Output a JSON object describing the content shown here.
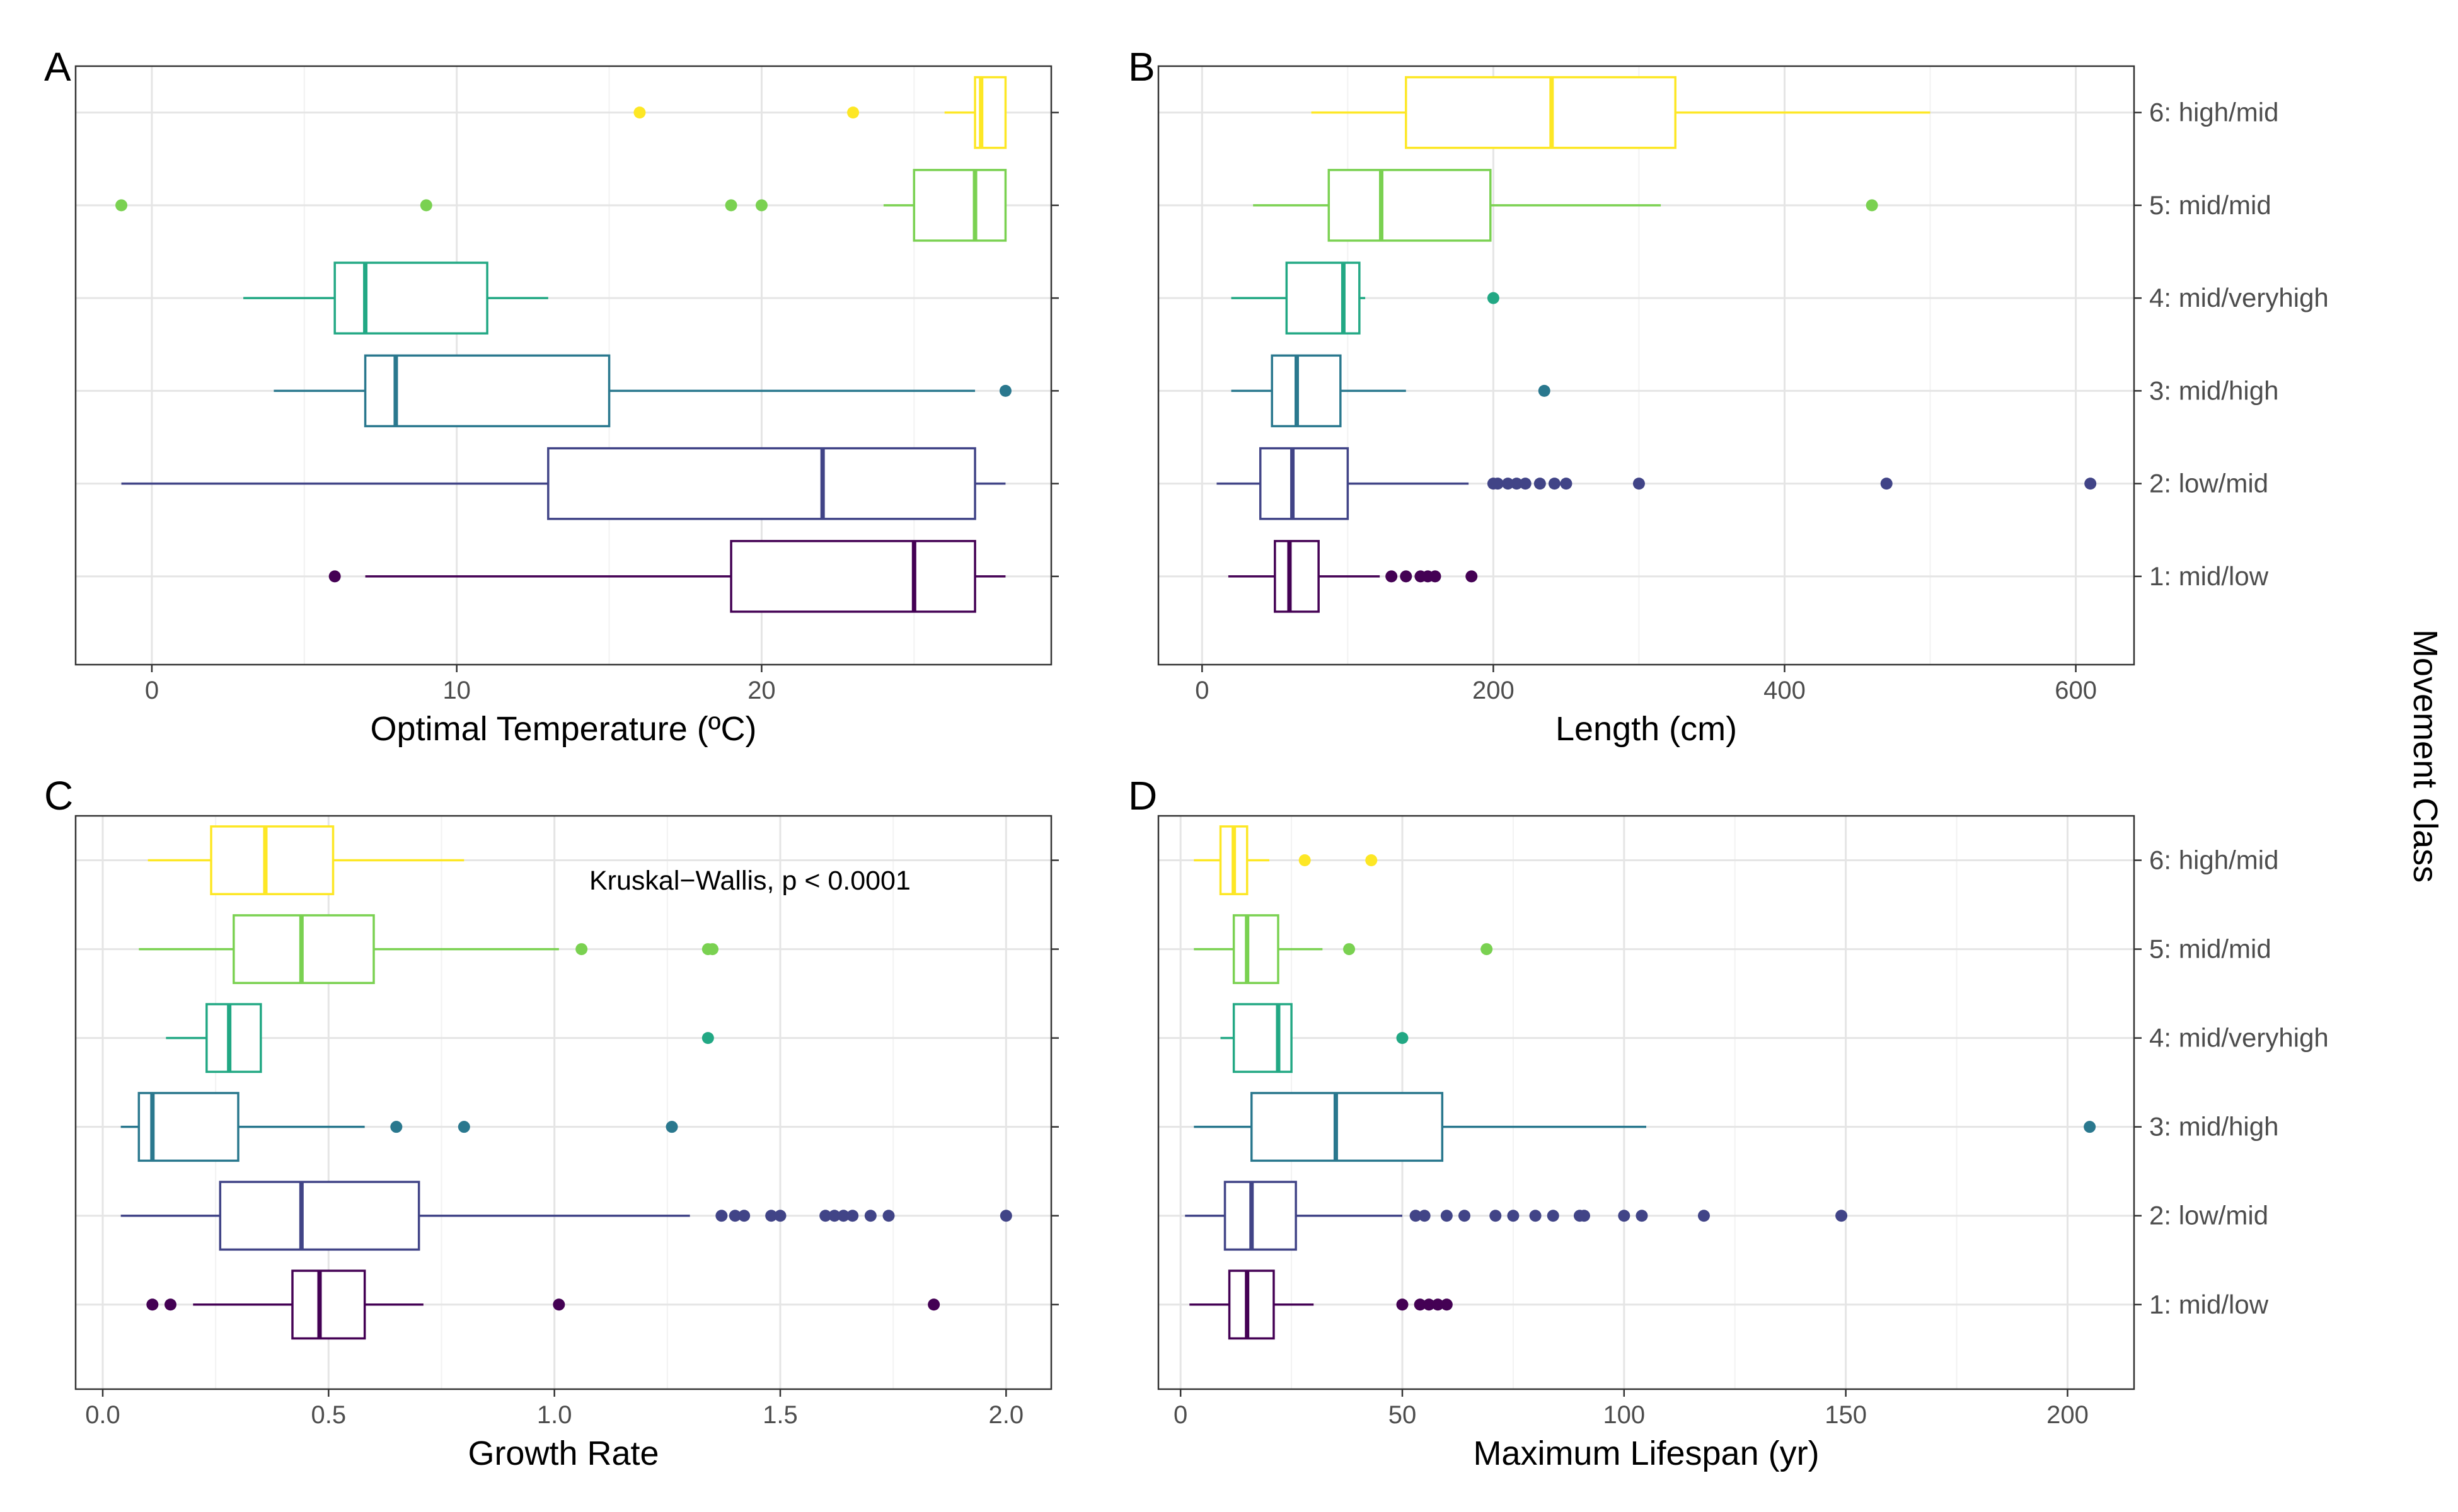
{
  "figure": {
    "y_title": "Movement Class",
    "categories": [
      "1: mid/low",
      "2: low/mid",
      "3: mid/high",
      "4: mid/veryhigh",
      "5: mid/mid",
      "6: high/mid"
    ],
    "colors": [
      "#440154",
      "#414487",
      "#2a788e",
      "#22a884",
      "#7ad151",
      "#fde725"
    ]
  },
  "chart_data": [
    {
      "panel": "A",
      "type": "box",
      "xlabel": "Optimal Temperature (ºC)",
      "xlim": [
        -2.5,
        29.5
      ],
      "xticks": [
        0,
        10,
        20
      ],
      "boxes": [
        {
          "category": "1: mid/low",
          "whisker_low": 7,
          "q1": 19,
          "median": 25,
          "q3": 27,
          "whisker_high": 28,
          "outliers": [
            6
          ]
        },
        {
          "category": "2: low/mid",
          "whisker_low": -1,
          "q1": 13,
          "median": 22,
          "q3": 27,
          "whisker_high": 28,
          "outliers": []
        },
        {
          "category": "3: mid/high",
          "whisker_low": 4,
          "q1": 7,
          "median": 8,
          "q3": 15,
          "whisker_high": 27,
          "outliers": [
            28
          ]
        },
        {
          "category": "4: mid/veryhigh",
          "whisker_low": 3,
          "q1": 6,
          "median": 7,
          "q3": 11,
          "whisker_high": 13,
          "outliers": []
        },
        {
          "category": "5: mid/mid",
          "whisker_low": 24,
          "q1": 25,
          "median": 27,
          "q3": 28,
          "whisker_high": 28,
          "outliers": [
            -1,
            9,
            19,
            20
          ]
        },
        {
          "category": "6: high/mid",
          "whisker_low": 26,
          "q1": 27,
          "median": 27.2,
          "q3": 28,
          "whisker_high": 28,
          "outliers": [
            16,
            23
          ]
        }
      ]
    },
    {
      "panel": "B",
      "type": "box",
      "xlabel": "Length (cm)",
      "xlim": [
        -30,
        640
      ],
      "xticks": [
        0,
        200,
        400,
        600
      ],
      "boxes": [
        {
          "category": "1: mid/low",
          "whisker_low": 18,
          "q1": 50,
          "median": 60,
          "q3": 80,
          "whisker_high": 122,
          "outliers": [
            130,
            140,
            150,
            155,
            160,
            185
          ]
        },
        {
          "category": "2: low/mid",
          "whisker_low": 10,
          "q1": 40,
          "median": 62,
          "q3": 100,
          "whisker_high": 183,
          "outliers": [
            200,
            203,
            210,
            216,
            222,
            232,
            242,
            250,
            300,
            470,
            610
          ]
        },
        {
          "category": "3: mid/high",
          "whisker_low": 20,
          "q1": 48,
          "median": 65,
          "q3": 95,
          "whisker_high": 140,
          "outliers": [
            235
          ]
        },
        {
          "category": "4: mid/veryhigh",
          "whisker_low": 20,
          "q1": 58,
          "median": 97,
          "q3": 108,
          "whisker_high": 112,
          "outliers": [
            200
          ]
        },
        {
          "category": "5: mid/mid",
          "whisker_low": 35,
          "q1": 87,
          "median": 123,
          "q3": 198,
          "whisker_high": 315,
          "outliers": [
            460
          ]
        },
        {
          "category": "6: high/mid",
          "whisker_low": 75,
          "q1": 140,
          "median": 240,
          "q3": 325,
          "whisker_high": 500,
          "outliers": []
        }
      ]
    },
    {
      "panel": "C",
      "type": "box",
      "xlabel": "Growth Rate",
      "xlim": [
        -0.06,
        2.1
      ],
      "xticks": [
        0.0,
        0.5,
        1.0,
        1.5,
        2.0
      ],
      "tick_labels": [
        "0.0",
        "0.5",
        "1.0",
        "1.5",
        "2.0"
      ],
      "annotation": "Kruskal−Wallis, p < 0.0001",
      "boxes": [
        {
          "category": "1: mid/low",
          "whisker_low": 0.2,
          "q1": 0.42,
          "median": 0.48,
          "q3": 0.58,
          "whisker_high": 0.71,
          "outliers": [
            0.11,
            0.15,
            1.01,
            1.84
          ]
        },
        {
          "category": "2: low/mid",
          "whisker_low": 0.04,
          "q1": 0.26,
          "median": 0.44,
          "q3": 0.7,
          "whisker_high": 1.3,
          "outliers": [
            1.37,
            1.4,
            1.42,
            1.48,
            1.5,
            1.6,
            1.62,
            1.64,
            1.66,
            1.7,
            1.74,
            2.0
          ]
        },
        {
          "category": "3: mid/high",
          "whisker_low": 0.04,
          "q1": 0.08,
          "median": 0.11,
          "q3": 0.3,
          "whisker_high": 0.58,
          "outliers": [
            0.65,
            0.8,
            1.26
          ]
        },
        {
          "category": "4: mid/veryhigh",
          "whisker_low": 0.14,
          "q1": 0.23,
          "median": 0.28,
          "q3": 0.35,
          "whisker_high": 0.35,
          "outliers": [
            1.34
          ]
        },
        {
          "category": "5: mid/mid",
          "whisker_low": 0.08,
          "q1": 0.29,
          "median": 0.44,
          "q3": 0.6,
          "whisker_high": 1.01,
          "outliers": [
            1.06,
            1.34,
            1.35
          ]
        },
        {
          "category": "6: high/mid",
          "whisker_low": 0.1,
          "q1": 0.24,
          "median": 0.36,
          "q3": 0.51,
          "whisker_high": 0.8,
          "outliers": []
        }
      ]
    },
    {
      "panel": "D",
      "type": "box",
      "xlabel": "Maximum Lifespan (yr)",
      "xlim": [
        -5,
        215
      ],
      "xticks": [
        0,
        50,
        100,
        150,
        200
      ],
      "boxes": [
        {
          "category": "1: mid/low",
          "whisker_low": 2,
          "q1": 11,
          "median": 15,
          "q3": 21,
          "whisker_high": 30,
          "outliers": [
            50,
            54,
            56,
            58,
            60
          ]
        },
        {
          "category": "2: low/mid",
          "whisker_low": 1,
          "q1": 10,
          "median": 16,
          "q3": 26,
          "whisker_high": 50,
          "outliers": [
            53,
            55,
            60,
            64,
            71,
            75,
            80,
            84,
            90,
            91,
            100,
            104,
            118,
            149
          ]
        },
        {
          "category": "3: mid/high",
          "whisker_low": 3,
          "q1": 16,
          "median": 35,
          "q3": 59,
          "whisker_high": 105,
          "outliers": [
            205
          ]
        },
        {
          "category": "4: mid/veryhigh",
          "whisker_low": 9,
          "q1": 12,
          "median": 22,
          "q3": 25,
          "whisker_high": 25,
          "outliers": [
            50
          ]
        },
        {
          "category": "5: mid/mid",
          "whisker_low": 3,
          "q1": 12,
          "median": 15,
          "q3": 22,
          "whisker_high": 32,
          "outliers": [
            38,
            69
          ]
        },
        {
          "category": "6: high/mid",
          "whisker_low": 3,
          "q1": 9,
          "median": 12,
          "q3": 15,
          "whisker_high": 20,
          "outliers": [
            28,
            43
          ]
        }
      ]
    }
  ]
}
